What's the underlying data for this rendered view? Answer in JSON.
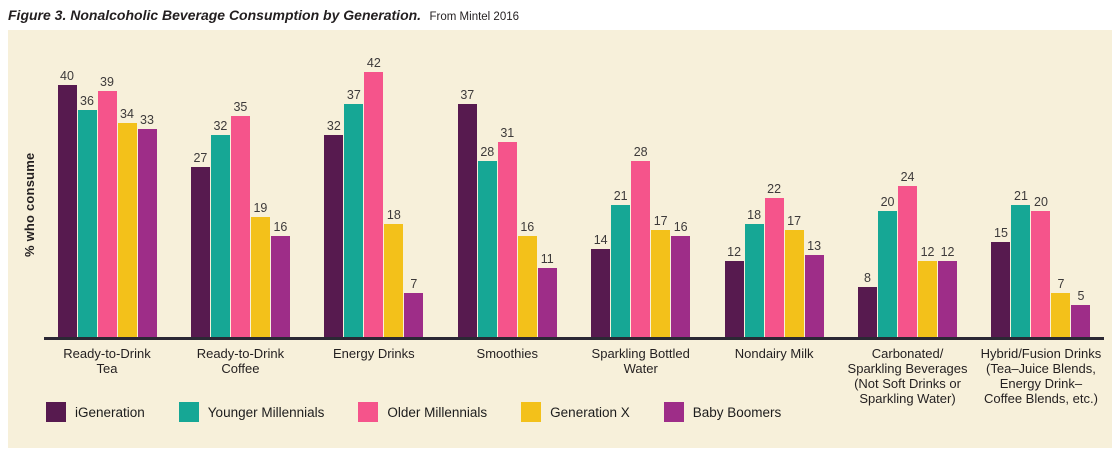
{
  "figure": {
    "title": "Figure 3. Nonalcoholic Beverage Consumption by Generation.",
    "source": "From Mintel 2016"
  },
  "colors": {
    "background": "#f7f0da",
    "axis_line": "#2b2834",
    "text": "#231f20"
  },
  "chart_data": {
    "type": "bar",
    "title": "Figure 3. Nonalcoholic Beverage Consumption by Generation.",
    "subtitle": "From Mintel 2016",
    "xlabel": "",
    "ylabel": "% who consume",
    "ylim": [
      0,
      45
    ],
    "grid": false,
    "legend_position": "bottom-left",
    "categories": [
      "Ready-to-Drink\nTea",
      "Ready-to-Drink\nCoffee",
      "Energy Drinks",
      "Smoothies",
      "Sparkling Bottled\nWater",
      "Nondairy Milk",
      "Carbonated/\nSparkling Beverages\n(Not Soft Drinks or\nSparkling Water)",
      "Hybrid/Fusion Drinks\n(Tea–Juice Blends,\nEnergy Drink–\nCoffee Blends, etc.)"
    ],
    "series": [
      {
        "name": "iGeneration",
        "color": "#571a4f",
        "values": [
          40,
          27,
          32,
          37,
          14,
          12,
          8,
          15
        ]
      },
      {
        "name": "Younger Millennials",
        "color": "#16a795",
        "values": [
          36,
          32,
          37,
          28,
          21,
          18,
          20,
          21
        ]
      },
      {
        "name": "Older Millennials",
        "color": "#f5548b",
        "values": [
          39,
          35,
          42,
          31,
          28,
          22,
          24,
          20
        ]
      },
      {
        "name": "Generation X",
        "color": "#f3c11a",
        "values": [
          34,
          19,
          18,
          16,
          17,
          17,
          12,
          7
        ]
      },
      {
        "name": "Baby Boomers",
        "color": "#9e2d88",
        "values": [
          33,
          16,
          7,
          11,
          16,
          13,
          12,
          5
        ]
      }
    ]
  }
}
